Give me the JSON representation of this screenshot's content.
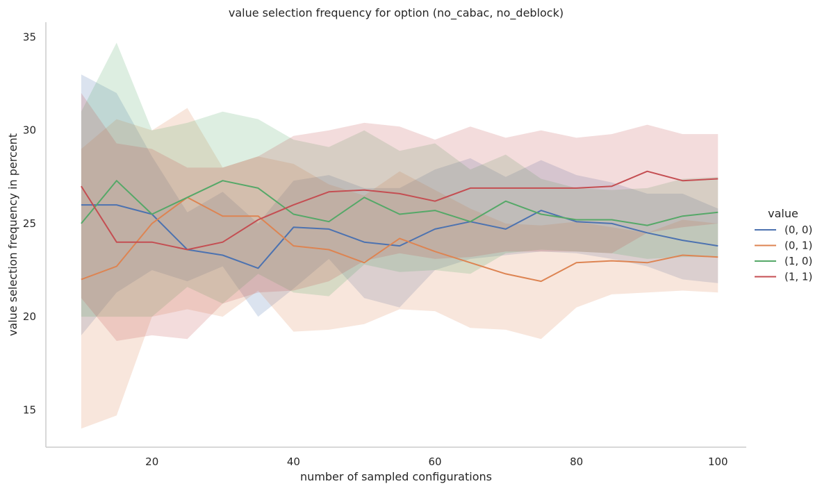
{
  "chart_data": {
    "type": "line",
    "title": "value selection frequency for option (no_cabac, no_deblock)",
    "xlabel": "number of sampled configurations",
    "ylabel": "value selection frequency in percent",
    "xlim": [
      5,
      104
    ],
    "ylim": [
      13,
      35.8
    ],
    "xticks": [
      20,
      40,
      60,
      80,
      100
    ],
    "yticks": [
      15,
      20,
      25,
      30,
      35
    ],
    "grid": false,
    "legend": {
      "title": "value",
      "placement": "right"
    },
    "x": [
      10,
      15,
      20,
      25,
      30,
      35,
      40,
      45,
      50,
      55,
      60,
      65,
      70,
      75,
      80,
      85,
      90,
      95,
      100
    ],
    "series": [
      {
        "name": "(0, 0)",
        "color": "#4c72b0",
        "values": [
          26,
          26,
          25.5,
          23.6,
          23.3,
          22.6,
          24.8,
          24.7,
          24.0,
          23.8,
          24.7,
          25.1,
          24.7,
          25.7,
          25.1,
          25.0,
          24.5,
          24.1,
          23.8
        ],
        "lower": [
          19,
          21.3,
          22.5,
          21.9,
          22.7,
          20,
          21.5,
          23.1,
          21,
          20.5,
          22.5,
          23.1,
          23.3,
          23.5,
          23.4,
          23.1,
          22.7,
          22,
          21.8
        ],
        "upper": [
          33,
          32,
          28.6,
          25.6,
          26.7,
          25,
          27.3,
          27.6,
          26.9,
          26.9,
          27.9,
          28.5,
          27.5,
          28.4,
          27.6,
          27.2,
          26.6,
          26.6,
          25.8
        ]
      },
      {
        "name": "(0, 1)",
        "color": "#dd8452",
        "values": [
          22,
          22.7,
          25,
          26.4,
          25.4,
          25.4,
          23.8,
          23.6,
          22.9,
          24.2,
          23.5,
          22.9,
          22.3,
          21.9,
          22.9,
          23.0,
          22.9,
          23.3,
          23.2
        ],
        "lower": [
          14,
          14.7,
          20,
          20.4,
          20.0,
          21.4,
          19.2,
          19.3,
          19.6,
          20.4,
          20.3,
          19.4,
          19.3,
          18.8,
          20.5,
          21.2,
          21.3,
          21.4,
          21.3
        ],
        "upper": [
          29,
          30.6,
          30,
          31.2,
          28,
          28.6,
          28.2,
          27.1,
          26.5,
          27.8,
          26.8,
          25.8,
          25,
          24.9,
          25.1,
          24.8,
          24.5,
          25.2,
          25
        ]
      },
      {
        "name": "(1, 0)",
        "color": "#55a868",
        "values": [
          25,
          27.3,
          25.5,
          26.4,
          27.3,
          26.9,
          25.5,
          25.1,
          26.4,
          25.5,
          25.7,
          25.1,
          26.2,
          25.5,
          25.2,
          25.2,
          24.9,
          25.4,
          25.6
        ],
        "lower": [
          20,
          20,
          20,
          21.6,
          20.7,
          22.3,
          21.3,
          21.1,
          22.8,
          22.4,
          22.5,
          22.3,
          23.4,
          23.6,
          23.5,
          23.4,
          23.1,
          23.2,
          23.2
        ],
        "upper": [
          31,
          34.7,
          30,
          30.4,
          31,
          30.6,
          29.5,
          29.1,
          30,
          28.9,
          29.3,
          27.9,
          28.7,
          27.4,
          26.9,
          26.8,
          26.9,
          27.4,
          27.5
        ]
      },
      {
        "name": "(1, 1)",
        "color": "#c44e52",
        "values": [
          27,
          24,
          24,
          23.6,
          24.0,
          25.2,
          26,
          26.7,
          26.8,
          26.6,
          26.2,
          26.9,
          26.9,
          26.9,
          26.9,
          27.0,
          27.8,
          27.3,
          27.4
        ],
        "lower": [
          21,
          18.7,
          19,
          18.8,
          20.7,
          21.3,
          21.4,
          21.9,
          23,
          23.4,
          23.1,
          23.2,
          23.5,
          23.5,
          23.5,
          23.4,
          24.5,
          24.8,
          25.0
        ],
        "upper": [
          32,
          29.3,
          29,
          28,
          28,
          28.6,
          29.7,
          30,
          30.4,
          30.2,
          29.5,
          30.2,
          29.6,
          30.0,
          29.6,
          29.8,
          30.3,
          29.8,
          29.8
        ]
      }
    ]
  }
}
